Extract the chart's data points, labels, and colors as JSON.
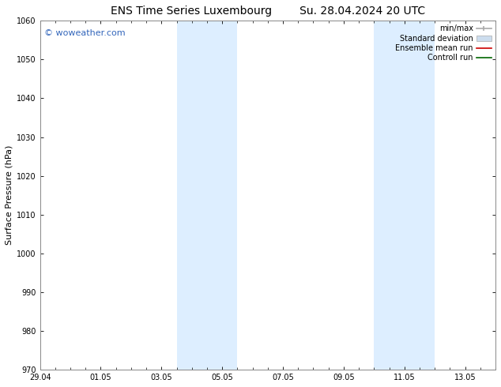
{
  "title_left": "ENS Time Series Luxembourg",
  "title_right": "Su. 28.04.2024 20 UTC",
  "ylabel": "Surface Pressure (hPa)",
  "ylim": [
    970,
    1060
  ],
  "yticks": [
    970,
    980,
    990,
    1000,
    1010,
    1020,
    1030,
    1040,
    1050,
    1060
  ],
  "xlim": [
    0,
    15
  ],
  "xtick_labels": [
    "29.04",
    "01.05",
    "03.05",
    "05.05",
    "07.05",
    "09.05",
    "11.05",
    "13.05"
  ],
  "xtick_positions": [
    0,
    2,
    4,
    6,
    8,
    10,
    12,
    14
  ],
  "shading_regions": [
    {
      "start": 4.5,
      "end": 6.5
    },
    {
      "start": 11.0,
      "end": 13.0
    }
  ],
  "watermark_text": "© woweather.com",
  "watermark_color": "#3366bb",
  "background_color": "#ffffff",
  "plot_bg_color": "#ffffff",
  "shading_color": "#ddeeff",
  "border_color": "#888888",
  "legend_items": [
    {
      "label": "min/max",
      "color": "#aaaaaa",
      "lw": 1.2
    },
    {
      "label": "Standard deviation",
      "color": "#ccddee",
      "lw": 5
    },
    {
      "label": "Ensemble mean run",
      "color": "#cc0000",
      "lw": 1.2
    },
    {
      "label": "Controll run",
      "color": "#006600",
      "lw": 1.2
    }
  ],
  "title_fontsize": 10,
  "tick_fontsize": 7,
  "label_fontsize": 8,
  "legend_fontsize": 7,
  "watermark_fontsize": 8
}
